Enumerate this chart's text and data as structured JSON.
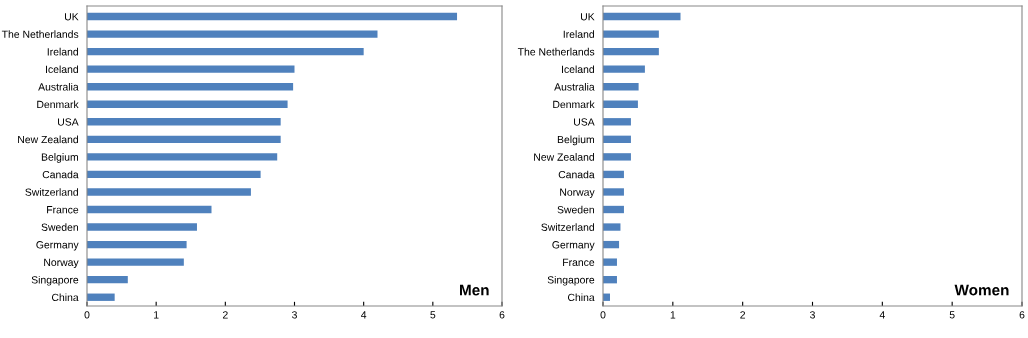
{
  "chart_data": [
    {
      "type": "bar",
      "orientation": "horizontal",
      "title": "Men",
      "categories": [
        "UK",
        "The Netherlands",
        "Ireland",
        "Iceland",
        "Australia",
        "Denmark",
        "USA",
        "New Zealand",
        "Belgium",
        "Canada",
        "Switzerland",
        "France",
        "Sweden",
        "Germany",
        "Norway",
        "Singapore",
        "China"
      ],
      "values": [
        5.35,
        4.2,
        4.0,
        3.0,
        2.98,
        2.9,
        2.8,
        2.8,
        2.75,
        2.51,
        2.37,
        1.8,
        1.59,
        1.44,
        1.4,
        0.59,
        0.4
      ],
      "color": "#4f81bd",
      "xlim": [
        0,
        6
      ],
      "xticks": [
        0,
        1,
        2,
        3,
        4,
        5,
        6
      ],
      "grid": false,
      "legend": false
    },
    {
      "type": "bar",
      "orientation": "horizontal",
      "title": "Women",
      "categories": [
        "UK",
        "Ireland",
        "The Netherlands",
        "Iceland",
        "Australia",
        "Denmark",
        "USA",
        "Belgium",
        "New Zealand",
        "Canada",
        "Norway",
        "Sweden",
        "Switzerland",
        "Germany",
        "France",
        "Singapore",
        "China"
      ],
      "values": [
        1.11,
        0.8,
        0.8,
        0.6,
        0.51,
        0.5,
        0.4,
        0.4,
        0.4,
        0.3,
        0.3,
        0.3,
        0.25,
        0.23,
        0.2,
        0.2,
        0.1
      ],
      "color": "#4f81bd",
      "xlim": [
        0,
        6
      ],
      "xticks": [
        0,
        1,
        2,
        3,
        4,
        5,
        6
      ],
      "grid": false,
      "legend": false
    }
  ]
}
